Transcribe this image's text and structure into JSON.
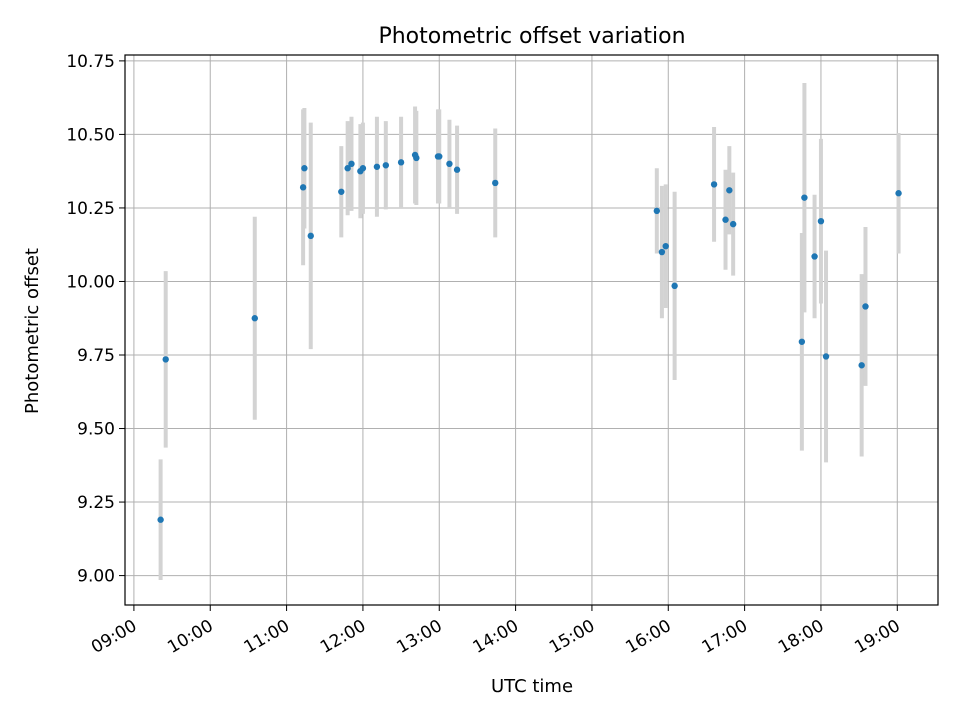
{
  "chart_data": {
    "type": "scatter",
    "title": "Photometric offset variation",
    "xlabel": "UTC time",
    "ylabel": "Photometric offset",
    "xlim": [
      "08:53",
      "19:32"
    ],
    "ylim": [
      8.9,
      10.77
    ],
    "xticks": [
      "09:00",
      "10:00",
      "11:00",
      "12:00",
      "13:00",
      "14:00",
      "15:00",
      "16:00",
      "17:00",
      "18:00",
      "19:00"
    ],
    "yticks": [
      9.0,
      9.25,
      9.5,
      9.75,
      10.0,
      10.25,
      10.5,
      10.75
    ],
    "ytick_labels": [
      "9.00",
      "9.25",
      "9.50",
      "9.75",
      "10.00",
      "10.25",
      "10.50",
      "10.75"
    ],
    "grid": true,
    "marker_color": "#1f77b4",
    "errorbar_color": "#d3d3d3",
    "series": [
      {
        "x": [
          "09:21",
          "09:25",
          "10:35",
          "11:13",
          "11:14",
          "11:19",
          "11:43",
          "11:48",
          "11:51",
          "11:58",
          "12:00",
          "12:11",
          "12:18",
          "12:30",
          "12:41",
          "12:42",
          "12:59",
          "13:00",
          "13:08",
          "13:14",
          "13:44",
          "15:51",
          "15:55",
          "15:58",
          "16:05",
          "16:36",
          "16:45",
          "16:48",
          "16:51",
          "17:45",
          "17:47",
          "17:55",
          "18:00",
          "18:04",
          "18:32",
          "18:35",
          "19:01"
        ],
        "y": [
          9.19,
          9.735,
          9.875,
          10.32,
          10.385,
          10.155,
          10.305,
          10.385,
          10.4,
          10.375,
          10.385,
          10.39,
          10.395,
          10.405,
          10.43,
          10.42,
          10.425,
          10.425,
          10.4,
          10.38,
          10.335,
          10.24,
          10.1,
          10.12,
          9.985,
          10.33,
          10.21,
          10.31,
          10.195,
          9.795,
          10.285,
          10.085,
          10.205,
          9.745,
          9.715,
          9.915,
          10.3
        ],
        "yerr": [
          0.205,
          0.3,
          0.345,
          0.265,
          0.205,
          0.385,
          0.155,
          0.16,
          0.16,
          0.16,
          0.155,
          0.17,
          0.15,
          0.155,
          0.165,
          0.16,
          0.16,
          0.16,
          0.15,
          0.15,
          0.185,
          0.145,
          0.225,
          0.21,
          0.32,
          0.195,
          0.17,
          0.15,
          0.175,
          0.37,
          0.39,
          0.21,
          0.28,
          0.36,
          0.31,
          0.27,
          0.205
        ]
      }
    ]
  }
}
